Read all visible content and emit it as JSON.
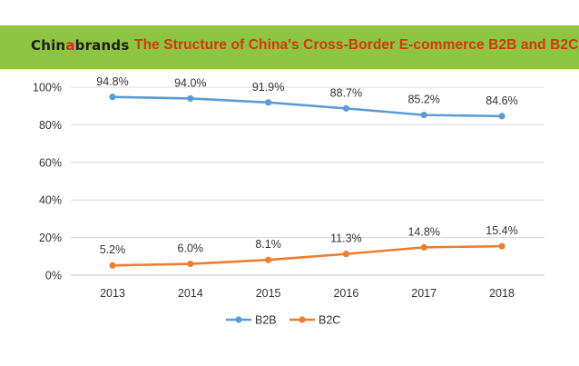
{
  "banner": {
    "logo_prefix": "Chin",
    "logo_highlight": "a",
    "logo_suffix": "brands",
    "title": "The Structure of China's Cross-Border E-commerce B2B and B2C",
    "background_color": "#8dc441",
    "title_color": "#d4380d"
  },
  "chart_data": {
    "type": "line",
    "title": "",
    "xlabel": "",
    "ylabel": "",
    "categories": [
      "2013",
      "2014",
      "2015",
      "2016",
      "2017",
      "2018"
    ],
    "ylim": [
      0,
      100
    ],
    "yticks": [
      0,
      20,
      40,
      60,
      80,
      100
    ],
    "ytick_labels": [
      "0%",
      "20%",
      "40%",
      "60%",
      "80%",
      "100%"
    ],
    "grid": true,
    "legend_position": "bottom",
    "series": [
      {
        "name": "B2B",
        "color": "#5b9bd5",
        "values": [
          94.8,
          94.0,
          91.9,
          88.7,
          85.2,
          84.6
        ],
        "labels": [
          "94.8%",
          "94.0%",
          "91.9%",
          "88.7%",
          "85.2%",
          "84.6%"
        ]
      },
      {
        "name": "B2C",
        "color": "#ed7d31",
        "values": [
          5.2,
          6.0,
          8.1,
          11.3,
          14.8,
          15.4
        ],
        "labels": [
          "5.2%",
          "6.0%",
          "8.1%",
          "11.3%",
          "14.8%",
          "15.4%"
        ]
      }
    ]
  }
}
